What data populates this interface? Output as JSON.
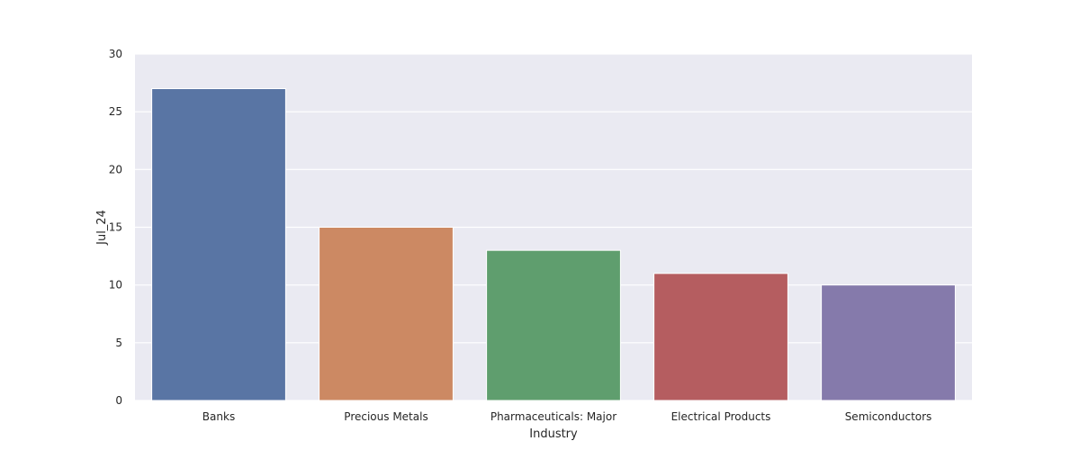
{
  "chart_data": {
    "type": "bar",
    "title": "",
    "xlabel": "Industry",
    "ylabel": "Jul_24",
    "categories": [
      "Banks",
      "Precious Metals",
      "Pharmaceuticals: Major",
      "Electrical Products",
      "Semiconductors"
    ],
    "values": [
      27,
      15,
      13,
      11,
      10
    ],
    "ylim": [
      0,
      30
    ],
    "yticks": [
      0,
      5,
      10,
      15,
      20,
      25,
      30
    ],
    "grid": true,
    "style": {
      "plot_background": "#eaeaf2",
      "grid_color": "#ffffff",
      "bar_colors": [
        "#5975a4",
        "#cc8963",
        "#5f9e6e",
        "#b55d60",
        "#857aab"
      ]
    }
  }
}
